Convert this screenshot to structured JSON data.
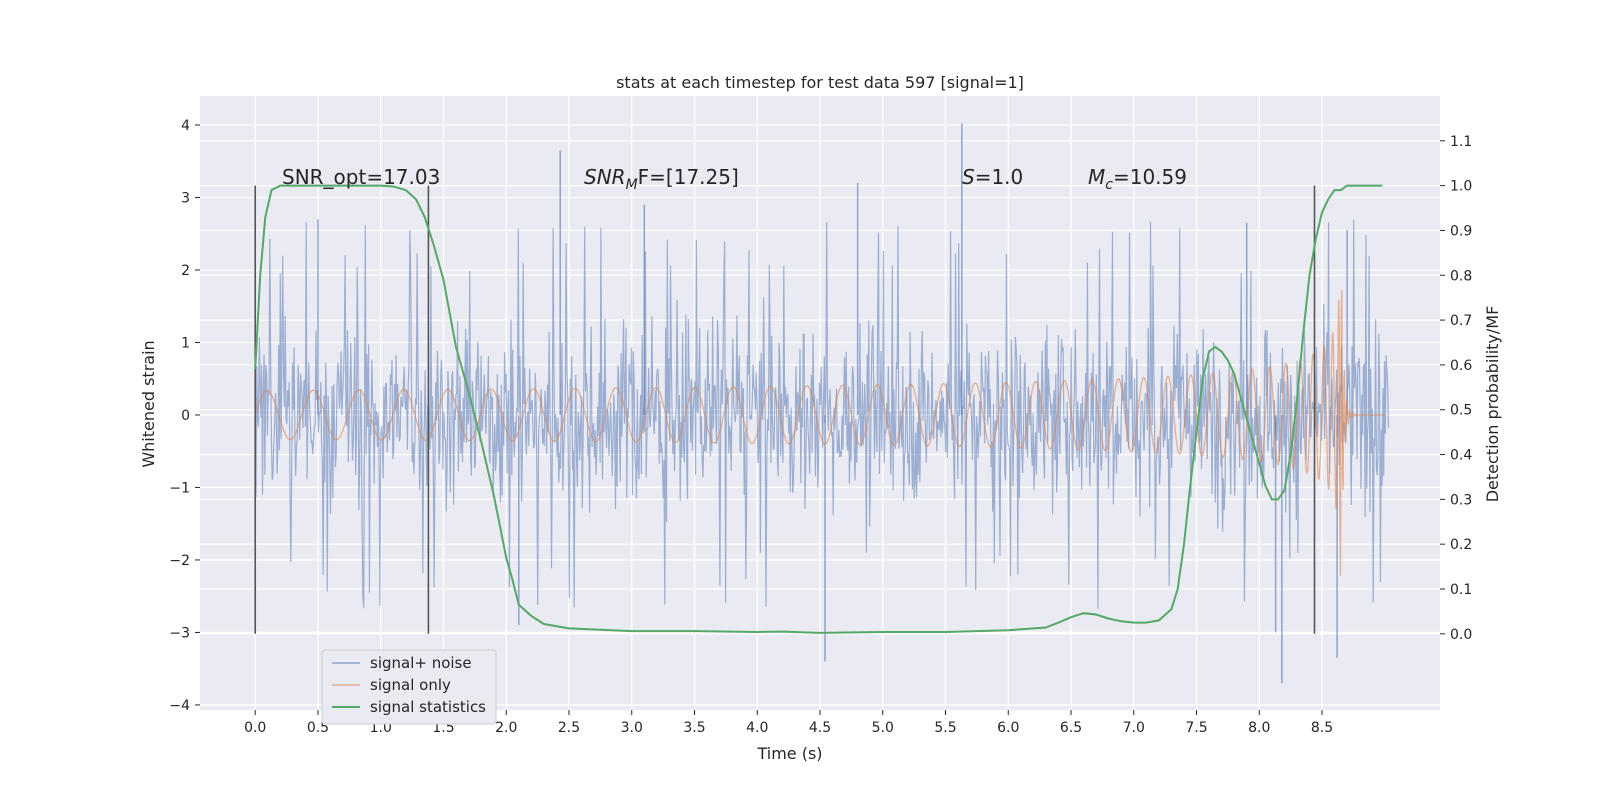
{
  "chart_data": {
    "type": "line",
    "title": "stats at each timestep for test data 597 [signal=1]",
    "xlabel": "Time (s)",
    "ylabel": "Whitened strain",
    "y2label": "Detection probability/MF",
    "xlim": [
      -0.44,
      9.44
    ],
    "ylim": [
      -4.07,
      4.4
    ],
    "y2lim": [
      -0.17,
      1.2
    ],
    "x_ticks": [
      "0.0",
      "0.5",
      "1.0",
      "1.5",
      "2.0",
      "2.5",
      "3.0",
      "3.5",
      "4.0",
      "4.5",
      "5.0",
      "5.5",
      "6.0",
      "6.5",
      "7.0",
      "7.5",
      "8.0",
      "8.5"
    ],
    "y_ticks": [
      "4",
      "3",
      "2",
      "1",
      "0",
      "−1",
      "−2",
      "−3",
      "−4"
    ],
    "y2_ticks": [
      "1.1",
      "1.0",
      "0.9",
      "0.8",
      "0.7",
      "0.6",
      "0.5",
      "0.4",
      "0.3",
      "0.2",
      "0.1",
      "0.0"
    ],
    "grid": true,
    "legend_position": "lower-left",
    "annotations": {
      "snr_opt": "SNR_opt=17.03",
      "snr_mf_main": "SNR",
      "snr_mf_sub": "M",
      "snr_mf_rest": "F=[17.25]",
      "s_main": "S",
      "s_rest": "=1.0",
      "mc_main": "M",
      "mc_sub": "c",
      "mc_rest": "=10.59"
    },
    "vertical_markers": [
      0.0,
      1.38,
      8.44
    ],
    "series": [
      {
        "name": "signal+ noise",
        "color": "#4c72b0",
        "axis": "left",
        "envelope": {
          "t_start": 0.0,
          "t_end": 9.03,
          "typical_range": [
            -1.8,
            1.8
          ]
        },
        "spikes": [
          {
            "t": 2.43,
            "v": 3.65
          },
          {
            "t": 5.63,
            "v": 4.02
          },
          {
            "t": 4.8,
            "v": 3.2
          },
          {
            "t": 4.54,
            "v": -3.4
          },
          {
            "t": 8.18,
            "v": -3.7
          },
          {
            "t": 8.13,
            "v": -3.0
          },
          {
            "t": 0.5,
            "v": 2.7
          },
          {
            "t": 2.1,
            "v": -2.9
          },
          {
            "t": 8.62,
            "v": -3.35
          },
          {
            "t": 8.7,
            "v": 2.55
          },
          {
            "t": 3.1,
            "v": 2.9
          },
          {
            "t": 7.9,
            "v": 2.65
          }
        ]
      },
      {
        "name": "signal only",
        "color": "#dd8452",
        "axis": "left",
        "chirp": {
          "t_merger": 8.65,
          "peak_amplitude": 2.55
        }
      },
      {
        "name": "signal statistics",
        "color": "#55a868",
        "axis": "right",
        "x": [
          0.0,
          0.04,
          0.08,
          0.13,
          0.2,
          0.3,
          0.4,
          0.6,
          0.8,
          1.0,
          1.1,
          1.2,
          1.28,
          1.35,
          1.42,
          1.5,
          1.6,
          1.7,
          1.8,
          1.9,
          1.95,
          2.0,
          2.05,
          2.1,
          2.2,
          2.3,
          2.5,
          3.0,
          3.5,
          4.0,
          4.2,
          4.5,
          5.0,
          5.5,
          6.0,
          6.3,
          6.4,
          6.5,
          6.6,
          6.7,
          6.8,
          6.9,
          7.0,
          7.1,
          7.2,
          7.3,
          7.35,
          7.4,
          7.45,
          7.5,
          7.55,
          7.6,
          7.65,
          7.7,
          7.75,
          7.8,
          7.85,
          7.9,
          7.95,
          8.0,
          8.05,
          8.1,
          8.15,
          8.2,
          8.25,
          8.3,
          8.35,
          8.4,
          8.45,
          8.5,
          8.55,
          8.6,
          8.65,
          8.7,
          8.8,
          8.9,
          8.98
        ],
        "values": [
          0.59,
          0.8,
          0.93,
          0.99,
          1.0,
          1.0,
          1.0,
          1.0,
          1.0,
          1.0,
          0.998,
          0.99,
          0.97,
          0.93,
          0.87,
          0.79,
          0.64,
          0.54,
          0.43,
          0.31,
          0.24,
          0.17,
          0.12,
          0.065,
          0.04,
          0.022,
          0.012,
          0.006,
          0.006,
          0.004,
          0.005,
          0.002,
          0.004,
          0.004,
          0.008,
          0.014,
          0.025,
          0.037,
          0.046,
          0.043,
          0.034,
          0.028,
          0.025,
          0.025,
          0.03,
          0.055,
          0.1,
          0.2,
          0.33,
          0.45,
          0.57,
          0.63,
          0.64,
          0.63,
          0.61,
          0.58,
          0.53,
          0.48,
          0.43,
          0.38,
          0.33,
          0.3,
          0.3,
          0.32,
          0.4,
          0.52,
          0.67,
          0.8,
          0.88,
          0.94,
          0.97,
          0.99,
          0.99,
          1.0,
          1.0,
          1.0,
          1.0
        ]
      }
    ]
  }
}
